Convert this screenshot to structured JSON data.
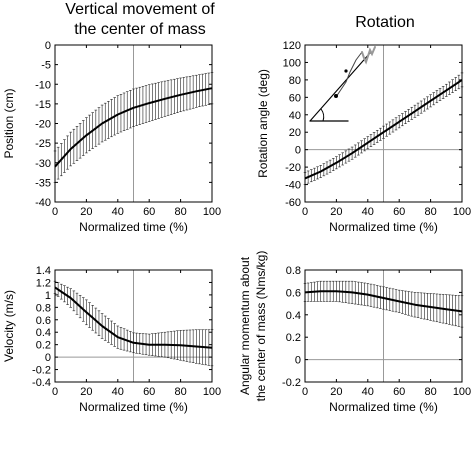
{
  "titles": {
    "left": [
      "Vertical movement of",
      "the center of mass"
    ],
    "right": "Rotation"
  },
  "chart_data": [
    {
      "id": "position",
      "type": "line",
      "xlabel": "Normalized time (%)",
      "ylabel": [
        "Position (cm)"
      ],
      "xlim": [
        0,
        100
      ],
      "ylim": [
        -40,
        0
      ],
      "xticks": [
        0,
        20,
        40,
        60,
        80,
        100
      ],
      "yticks": [
        -40,
        -35,
        -30,
        -25,
        -20,
        -15,
        -10,
        -5,
        0
      ],
      "vline": 50,
      "hline": null,
      "x": [
        0,
        10,
        20,
        30,
        40,
        50,
        60,
        70,
        80,
        90,
        100
      ],
      "y": [
        -31,
        -26.5,
        -23,
        -20,
        -17.7,
        -16,
        -14.8,
        -13.7,
        -12.7,
        -11.8,
        -11
      ],
      "err": [
        4,
        4.3,
        4.5,
        4.7,
        4.8,
        4.8,
        4.7,
        4.5,
        4.3,
        4.1,
        4
      ]
    },
    {
      "id": "rotation",
      "type": "line",
      "xlabel": "Normalized time (%)",
      "ylabel": [
        "Rotation angle (deg)"
      ],
      "xlim": [
        0,
        100
      ],
      "ylim": [
        -60,
        120
      ],
      "xticks": [
        0,
        20,
        40,
        60,
        80,
        100
      ],
      "yticks": [
        -60,
        -40,
        -20,
        0,
        20,
        40,
        60,
        80,
        100,
        120
      ],
      "vline": 50,
      "hline": 0,
      "x": [
        0,
        10,
        20,
        30,
        40,
        50,
        60,
        70,
        80,
        90,
        100
      ],
      "y": [
        -33,
        -25,
        -15,
        -4,
        8,
        20,
        32,
        44,
        56,
        68,
        80
      ],
      "err": [
        7,
        7,
        7,
        7,
        7,
        7,
        7,
        7,
        7,
        7,
        8
      ]
    },
    {
      "id": "velocity",
      "type": "line",
      "xlabel": "Normalized time (%)",
      "ylabel": [
        "Velocity (m/s)"
      ],
      "xlim": [
        0,
        100
      ],
      "ylim": [
        -0.4,
        1.4
      ],
      "xticks": [
        0,
        20,
        40,
        60,
        80,
        100
      ],
      "yticks": [
        -0.4,
        -0.2,
        0,
        0.2,
        0.4,
        0.6,
        0.8,
        1.0,
        1.2,
        1.4
      ],
      "yticklabels": [
        "-0.4",
        "-0.2",
        "0",
        "0.2",
        "0.4",
        "0.6",
        "0.8",
        "1",
        "1.2",
        "1.4"
      ],
      "vline": 50,
      "hline": 0,
      "x": [
        0,
        10,
        20,
        30,
        40,
        50,
        60,
        70,
        80,
        90,
        100
      ],
      "y": [
        1.12,
        0.95,
        0.72,
        0.5,
        0.32,
        0.23,
        0.2,
        0.2,
        0.19,
        0.17,
        0.15
      ],
      "err": [
        0.1,
        0.15,
        0.2,
        0.2,
        0.18,
        0.16,
        0.17,
        0.2,
        0.24,
        0.27,
        0.29
      ]
    },
    {
      "id": "angular-momentum",
      "type": "line",
      "xlabel": "Normalized time (%)",
      "ylabel": [
        "Angular momentum about",
        "the center of mass (Nms/kg)"
      ],
      "xlim": [
        0,
        100
      ],
      "ylim": [
        -0.2,
        0.8
      ],
      "xticks": [
        0,
        20,
        40,
        60,
        80,
        100
      ],
      "yticks": [
        -0.2,
        0,
        0.2,
        0.4,
        0.6,
        0.8
      ],
      "yticklabels": [
        "-0.2",
        "0",
        "0.2",
        "0.4",
        "0.6",
        "0.8"
      ],
      "vline": 50,
      "hline": 0,
      "x": [
        0,
        10,
        20,
        30,
        40,
        50,
        60,
        70,
        80,
        90,
        100
      ],
      "y": [
        0.6,
        0.61,
        0.61,
        0.6,
        0.58,
        0.55,
        0.52,
        0.49,
        0.47,
        0.45,
        0.43
      ],
      "err": [
        0.08,
        0.09,
        0.09,
        0.1,
        0.1,
        0.1,
        0.1,
        0.11,
        0.12,
        0.13,
        0.14
      ]
    }
  ]
}
